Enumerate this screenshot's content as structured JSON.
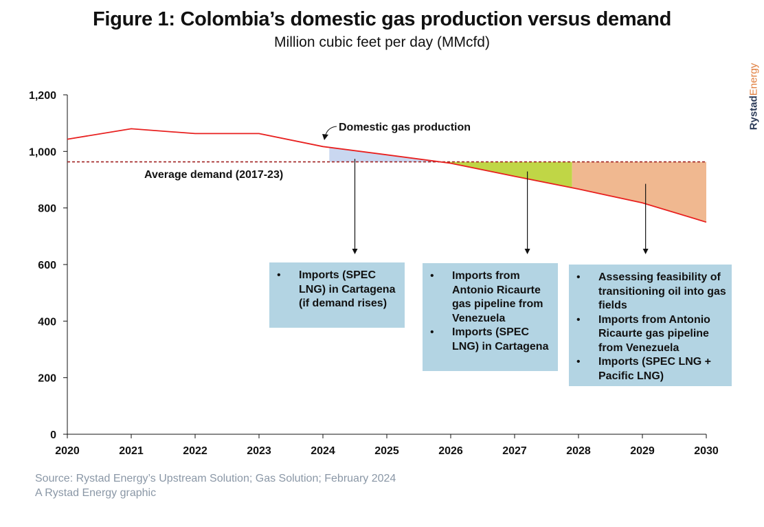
{
  "chart_data": {
    "type": "line",
    "title": "Figure 1: Colombia’s domestic gas production versus demand",
    "subtitle": "Million cubic feet per day (MMcfd)",
    "x": [
      2020,
      2021,
      2022,
      2023,
      2024,
      2025,
      2026,
      2027,
      2028,
      2029,
      2030
    ],
    "x_ticks": [
      "2020",
      "2021",
      "2022",
      "2023",
      "2024",
      "2025",
      "2026",
      "2027",
      "2028",
      "2029",
      "2030"
    ],
    "y_ticks": [
      "0",
      "200",
      "400",
      "600",
      "800",
      "1,000",
      "1,200"
    ],
    "ylim": [
      0,
      1200
    ],
    "xlim": [
      2020,
      2030
    ],
    "grid": false,
    "series": [
      {
        "name": "Domestic gas production",
        "values": [
          1043,
          1080,
          1063,
          1063,
          1017,
          988,
          958,
          912,
          867,
          818,
          750
        ],
        "color": "#e8201f"
      },
      {
        "name": "Average demand (2017-23)",
        "values": [
          963,
          963,
          963,
          963,
          963,
          963,
          963,
          963,
          963,
          963,
          963
        ],
        "color": "#a02020",
        "style": "dashed"
      }
    ],
    "shaded_regions": [
      {
        "x_range": [
          2024.1,
          2025.9
        ],
        "color": "#c9d7f0"
      },
      {
        "x_range": [
          2025.9,
          2027.9
        ],
        "color": "#c0d646"
      },
      {
        "x_range": [
          2027.9,
          2030
        ],
        "color": "#f0b890"
      }
    ],
    "annotations": [
      {
        "text": "Domestic gas production"
      },
      {
        "text": "Average demand (2017-23)"
      }
    ],
    "arrow_points": [
      2024.5,
      2027.2,
      2029.05
    ]
  },
  "boxes": [
    {
      "items": [
        "Imports (SPEC LNG) in Cartagena (if demand rises)"
      ]
    },
    {
      "items": [
        "Imports from Antonio Ricaurte gas pipeline from Venezuela",
        "Imports (SPEC LNG) in Cartagena"
      ]
    },
    {
      "items": [
        "Assessing feasibility of transitioning oil into gas fields",
        "Imports from Antonio Ricaurte gas pipeline from Venezuela",
        "Imports (SPEC LNG + Pacific LNG)"
      ]
    }
  ],
  "source": {
    "line1": "Source: Rystad Energy’s Upstream Solution; Gas Solution; February 2024",
    "line2": "A Rystad Energy graphic"
  },
  "brand": {
    "part1": "Rystad",
    "part2": "Energy"
  }
}
